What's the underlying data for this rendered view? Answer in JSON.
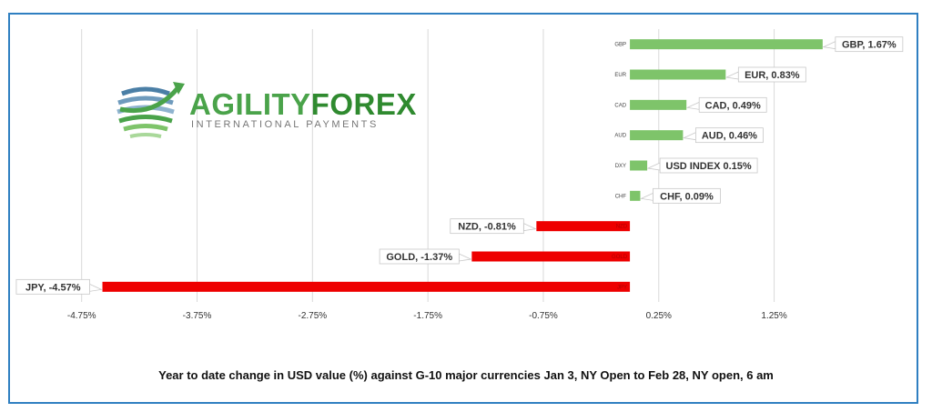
{
  "caption": "Year to date change in  USD value (%)  against  G-10 major currencies Jan 3, NY Open to  Feb 28, NY open, 6 am",
  "logo": {
    "brand_part1": "AGILITY",
    "brand_part2": "FOREX",
    "tagline": "INTERNATIONAL PAYMENTS"
  },
  "colors": {
    "positive": "#7ec46a",
    "negative": "#ee0000",
    "grid": "#d9d9d9",
    "frame": "#2f7fc1",
    "brand_green": "#4aa34a",
    "brand_gray": "#777777"
  },
  "chart_data": {
    "type": "bar",
    "orientation": "horizontal",
    "categories": [
      "GBP",
      "EUR",
      "CAD",
      "AUD",
      "DXY",
      "CHF",
      "NZD",
      "GOLD",
      "JPY"
    ],
    "values": [
      1.67,
      0.83,
      0.49,
      0.46,
      0.15,
      0.09,
      -0.81,
      -1.37,
      -4.57
    ],
    "data_labels": [
      "GBP, 1.67%",
      "EUR, 0.83%",
      "CAD, 0.49%",
      "AUD, 0.46%",
      "USD INDEX 0.15%",
      "CHF, 0.09%",
      "NZD, -0.81%",
      "GOLD, -1.37%",
      "JPY, -4.57%"
    ],
    "xlim": [
      -5.0,
      1.75
    ],
    "xticks": [
      -4.75,
      -3.75,
      -2.75,
      -1.75,
      -0.75,
      0.25,
      1.25
    ],
    "xtick_labels": [
      "-4.75%",
      "-3.75%",
      "-2.75%",
      "-1.75%",
      "-0.75%",
      "0.25%",
      "1.25%"
    ],
    "grid": true
  }
}
